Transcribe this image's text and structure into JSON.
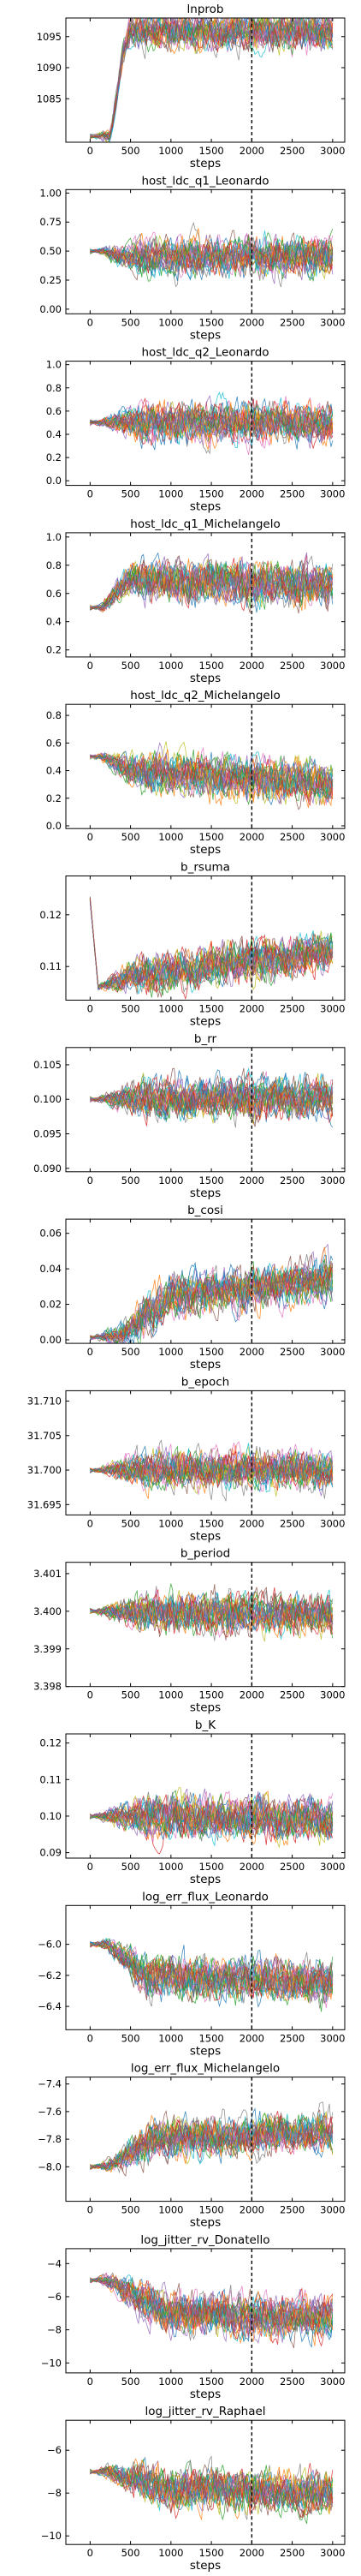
{
  "chart_data": [
    {
      "type": "line",
      "title": "lnprob",
      "xlabel": "steps",
      "xlim": [
        -300,
        3150
      ],
      "ylim": [
        1078,
        1098
      ],
      "xticks": [
        0,
        500,
        1000,
        1500,
        2000,
        2500,
        3000
      ],
      "yticks": [
        1085,
        1090,
        1095
      ],
      "burn_in_step": 2000,
      "series": [
        {
          "values": [
            [
              0,
              1079
            ],
            [
              250,
              1079
            ],
            [
              300,
              1083
            ],
            [
              400,
              1092
            ],
            [
              500,
              1096
            ],
            [
              3000,
              1096
            ]
          ]
        }
      ]
    },
    {
      "type": "line",
      "title": "host_ldc_q1_Leonardo",
      "xlabel": "steps",
      "xlim": [
        -300,
        3150
      ],
      "ylim": [
        -0.04,
        1.03
      ],
      "xticks": [
        0,
        500,
        1000,
        1500,
        2000,
        2500,
        3000
      ],
      "yticks": [
        0.0,
        0.25,
        0.5,
        0.75,
        1.0
      ],
      "burn_in_step": 2000,
      "series": [
        {
          "values": [
            [
              0,
              0.5
            ],
            [
              150,
              0.5
            ],
            [
              400,
              0.45
            ],
            [
              3000,
              0.45
            ]
          ]
        }
      ]
    },
    {
      "type": "line",
      "title": "host_ldc_q2_Leonardo",
      "xlabel": "steps",
      "xlim": [
        -300,
        3150
      ],
      "ylim": [
        -0.04,
        1.03
      ],
      "xticks": [
        0,
        500,
        1000,
        1500,
        2000,
        2500,
        3000
      ],
      "yticks": [
        0.0,
        0.2,
        0.4,
        0.6,
        0.8,
        1.0
      ],
      "burn_in_step": 2000,
      "series": [
        {
          "values": [
            [
              0,
              0.5
            ],
            [
              150,
              0.5
            ],
            [
              500,
              0.5
            ],
            [
              3000,
              0.5
            ]
          ]
        }
      ]
    },
    {
      "type": "line",
      "title": "host_ldc_q1_Michelangelo",
      "xlabel": "steps",
      "xlim": [
        -300,
        3150
      ],
      "ylim": [
        0.15,
        1.03
      ],
      "xticks": [
        0,
        500,
        1000,
        1500,
        2000,
        2500,
        3000
      ],
      "yticks": [
        0.2,
        0.4,
        0.6,
        0.8,
        1.0
      ],
      "burn_in_step": 2000,
      "series": [
        {
          "values": [
            [
              0,
              0.5
            ],
            [
              150,
              0.5
            ],
            [
              500,
              0.7
            ],
            [
              3000,
              0.65
            ]
          ]
        }
      ]
    },
    {
      "type": "line",
      "title": "host_ldc_q2_Michelangelo",
      "xlabel": "steps",
      "xlim": [
        -300,
        3150
      ],
      "ylim": [
        -0.02,
        0.88
      ],
      "xticks": [
        0,
        500,
        1000,
        1500,
        2000,
        2500,
        3000
      ],
      "yticks": [
        0.0,
        0.2,
        0.4,
        0.6,
        0.8
      ],
      "burn_in_step": 2000,
      "series": [
        {
          "values": [
            [
              0,
              0.5
            ],
            [
              150,
              0.5
            ],
            [
              500,
              0.4
            ],
            [
              3000,
              0.3
            ]
          ]
        }
      ]
    },
    {
      "type": "line",
      "title": "b_rsuma",
      "xlabel": "steps",
      "xlim": [
        -300,
        3150
      ],
      "ylim": [
        0.1035,
        0.1275
      ],
      "xticks": [
        0,
        500,
        1000,
        1500,
        2000,
        2500,
        3000
      ],
      "yticks": [
        0.11,
        0.12
      ],
      "burn_in_step": 2000,
      "series": [
        {
          "values": [
            [
              0,
              0.123
            ],
            [
              100,
              0.106
            ],
            [
              500,
              0.108
            ],
            [
              3000,
              0.113
            ]
          ]
        }
      ]
    },
    {
      "type": "line",
      "title": "b_rr",
      "xlabel": "steps",
      "xlim": [
        -300,
        3150
      ],
      "ylim": [
        0.0895,
        0.1075
      ],
      "xticks": [
        0,
        500,
        1000,
        1500,
        2000,
        2500,
        3000
      ],
      "yticks": [
        0.09,
        0.095,
        0.1,
        0.105
      ],
      "burn_in_step": 2000,
      "series": [
        {
          "values": [
            [
              0,
              0.1
            ],
            [
              100,
              0.1
            ],
            [
              500,
              0.1
            ],
            [
              3000,
              0.1
            ]
          ]
        }
      ]
    },
    {
      "type": "line",
      "title": "b_cosi",
      "xlabel": "steps",
      "xlim": [
        -300,
        3150
      ],
      "ylim": [
        -0.002,
        0.068
      ],
      "xticks": [
        0,
        500,
        1000,
        1500,
        2000,
        2500,
        3000
      ],
      "yticks": [
        0.0,
        0.02,
        0.04,
        0.06
      ],
      "burn_in_step": 2000,
      "series": [
        {
          "values": [
            [
              0,
              0.001
            ],
            [
              400,
              0.003
            ],
            [
              1000,
              0.025
            ],
            [
              3000,
              0.035
            ]
          ]
        }
      ]
    },
    {
      "type": "line",
      "title": "b_epoch",
      "xlabel": "steps",
      "xlim": [
        -300,
        3150
      ],
      "ylim": [
        31.6935,
        31.7115
      ],
      "xticks": [
        0,
        500,
        1000,
        1500,
        2000,
        2500,
        3000
      ],
      "yticks": [
        31.695,
        31.7,
        31.705,
        31.71
      ],
      "burn_in_step": 2000,
      "series": [
        {
          "values": [
            [
              0,
              31.7
            ],
            [
              200,
              31.7
            ],
            [
              3000,
              31.7
            ]
          ]
        }
      ]
    },
    {
      "type": "line",
      "title": "b_period",
      "xlabel": "steps",
      "xlim": [
        -300,
        3150
      ],
      "ylim": [
        3.398,
        3.4013
      ],
      "xticks": [
        0,
        500,
        1000,
        1500,
        2000,
        2500,
        3000
      ],
      "yticks": [
        3.398,
        3.399,
        3.4,
        3.401
      ],
      "burn_in_step": 2000,
      "series": [
        {
          "values": [
            [
              0,
              3.4
            ],
            [
              200,
              3.4
            ],
            [
              3000,
              3.3999
            ]
          ]
        }
      ]
    },
    {
      "type": "line",
      "title": "b_K",
      "xlabel": "steps",
      "xlim": [
        -300,
        3150
      ],
      "ylim": [
        0.0885,
        0.1225
      ],
      "xticks": [
        0,
        500,
        1000,
        1500,
        2000,
        2500,
        3000
      ],
      "yticks": [
        0.09,
        0.1,
        0.11,
        0.12
      ],
      "burn_in_step": 2000,
      "series": [
        {
          "values": [
            [
              0,
              0.1
            ],
            [
              200,
              0.1
            ],
            [
              3000,
              0.099
            ]
          ]
        }
      ]
    },
    {
      "type": "line",
      "title": "log_err_flux_Leonardo",
      "xlabel": "steps",
      "xlim": [
        -300,
        3150
      ],
      "ylim": [
        -6.55,
        -5.75
      ],
      "xticks": [
        0,
        500,
        1000,
        1500,
        2000,
        2500,
        3000
      ],
      "yticks": [
        -6.4,
        -6.2,
        -6.0
      ],
      "burn_in_step": 2000,
      "series": [
        {
          "values": [
            [
              0,
              -6.0
            ],
            [
              200,
              -6.0
            ],
            [
              700,
              -6.2
            ],
            [
              3000,
              -6.25
            ]
          ]
        }
      ]
    },
    {
      "type": "line",
      "title": "log_err_flux_Michelangelo",
      "xlabel": "steps",
      "xlim": [
        -300,
        3150
      ],
      "ylim": [
        -8.25,
        -7.35
      ],
      "xticks": [
        0,
        500,
        1000,
        1500,
        2000,
        2500,
        3000
      ],
      "yticks": [
        -8.0,
        -7.8,
        -7.6,
        -7.4
      ],
      "burn_in_step": 2000,
      "series": [
        {
          "values": [
            [
              0,
              -8.0
            ],
            [
              200,
              -8.0
            ],
            [
              800,
              -7.8
            ],
            [
              3000,
              -7.75
            ]
          ]
        }
      ]
    },
    {
      "type": "line",
      "title": "log_jitter_rv_Donatello",
      "xlabel": "steps",
      "xlim": [
        -300,
        3150
      ],
      "ylim": [
        -10.6,
        -3.1
      ],
      "xticks": [
        0,
        500,
        1000,
        1500,
        2000,
        2500,
        3000
      ],
      "yticks": [
        -4,
        -6,
        -8,
        -10
      ],
      "burn_in_step": 2000,
      "series": [
        {
          "values": [
            [
              0,
              -5.0
            ],
            [
              200,
              -5.0
            ],
            [
              1000,
              -7.0
            ],
            [
              3000,
              -7.3
            ]
          ]
        }
      ]
    },
    {
      "type": "line",
      "title": "log_jitter_rv_Raphael",
      "xlabel": "steps",
      "xlim": [
        -300,
        3150
      ],
      "ylim": [
        -10.4,
        -4.6
      ],
      "xticks": [
        0,
        500,
        1000,
        1500,
        2000,
        2500,
        3000
      ],
      "yticks": [
        -6,
        -8,
        -10
      ],
      "burn_in_step": 2000,
      "series": [
        {
          "values": [
            [
              0,
              -7.0
            ],
            [
              200,
              -7.0
            ],
            [
              1000,
              -7.8
            ],
            [
              3000,
              -8.0
            ]
          ]
        }
      ]
    }
  ]
}
